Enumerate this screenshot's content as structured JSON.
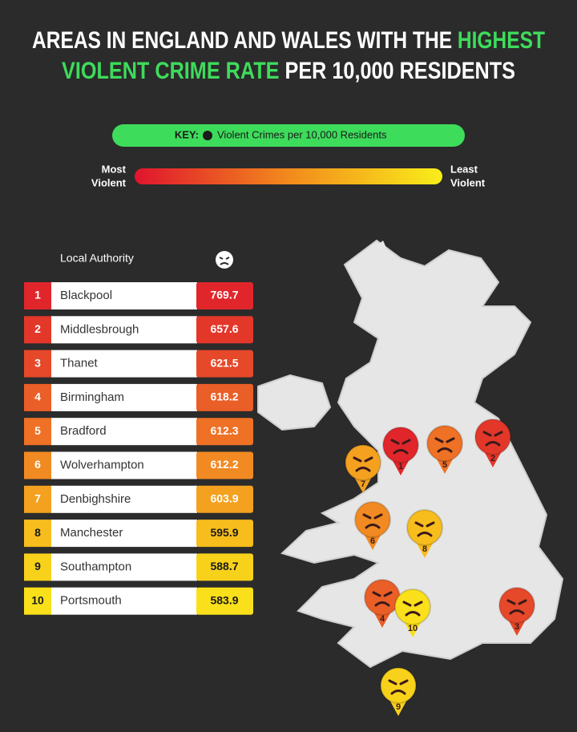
{
  "title": {
    "line1": {
      "plain": "AREAS IN ENGLAND AND WALES WITH THE",
      "highlight": "HIGHEST"
    },
    "line2": {
      "highlight": "VIOLENT CRIME RATE",
      "plain": "PER 10,000 RESIDENTS"
    }
  },
  "key": {
    "label": "KEY:",
    "text": "Violent Crimes per 10,000 Residents"
  },
  "scale": {
    "low": [
      "Most",
      "Violent"
    ],
    "high": [
      "Least",
      "Violent"
    ]
  },
  "table": {
    "header": "Local Authority",
    "rows": [
      {
        "rank": 1,
        "name": "Blackpool",
        "value": 769.7,
        "color": "#e0262b"
      },
      {
        "rank": 2,
        "name": "Middlesbrough",
        "value": 657.6,
        "color": "#e3372a"
      },
      {
        "rank": 3,
        "name": "Thanet",
        "value": 621.5,
        "color": "#e6482a"
      },
      {
        "rank": 4,
        "name": "Birmingham",
        "value": 618.2,
        "color": "#ea5e27"
      },
      {
        "rank": 5,
        "name": "Bradford",
        "value": 612.3,
        "color": "#ee7125"
      },
      {
        "rank": 6,
        "name": "Wolverhampton",
        "value": 612.2,
        "color": "#f18a22"
      },
      {
        "rank": 7,
        "name": "Denbighshire",
        "value": 603.9,
        "color": "#f4a11f"
      },
      {
        "rank": 8,
        "name": "Manchester",
        "value": 595.9,
        "color": "#f7bd1c"
      },
      {
        "rank": 9,
        "name": "Southampton",
        "value": 588.7,
        "color": "#f8d11b"
      },
      {
        "rank": 10,
        "name": "Portsmouth",
        "value": 583.9,
        "color": "#f9e01a"
      }
    ]
  }
}
